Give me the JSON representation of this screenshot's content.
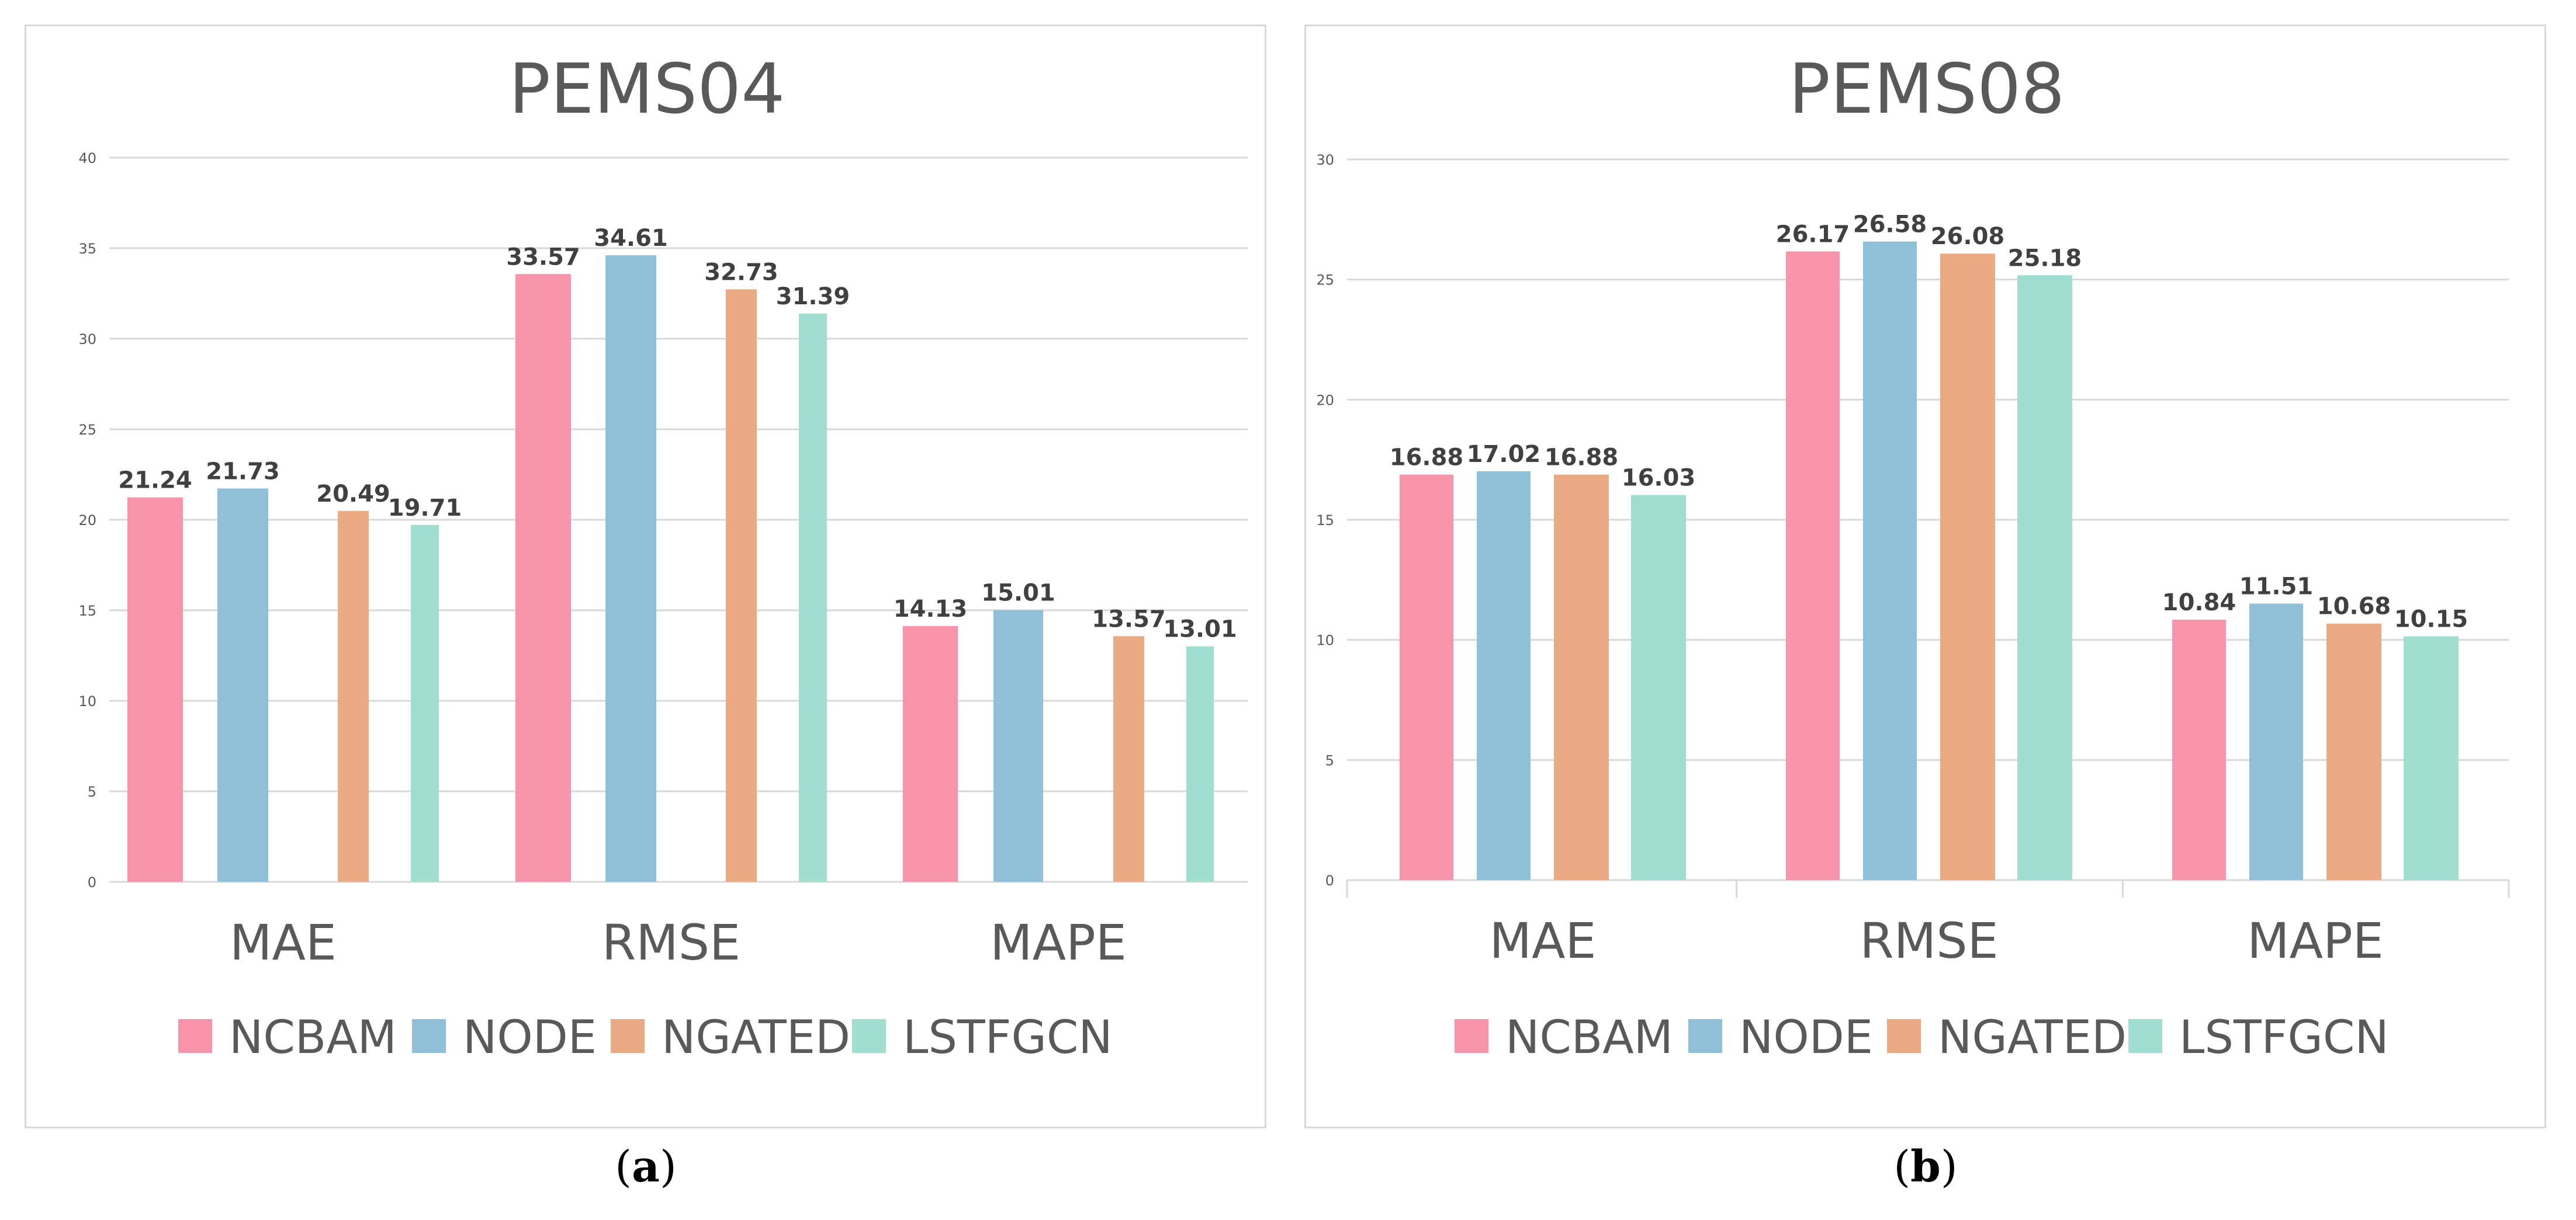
{
  "colors": {
    "NCBAM": "#f794aa",
    "NODE": "#8fc0d8",
    "NGATED": "#e9aa84",
    "LSTFGCN": "#a1ded0",
    "grid": "#d9d9d9",
    "text": "#595959"
  },
  "captions": {
    "a": "a",
    "b": "b"
  },
  "chart_data": [
    {
      "type": "bar",
      "title": "PEMS04",
      "categories": [
        "MAE",
        "RMSE",
        "MAPE"
      ],
      "ylim": [
        0,
        40
      ],
      "yticks": [
        0,
        5,
        10,
        15,
        20,
        25,
        30,
        35,
        40
      ],
      "ytick_labels": [
        "0",
        "5",
        "10",
        "15",
        "20",
        "25",
        "30",
        "35",
        "40"
      ],
      "grid": true,
      "legend_position": "bottom",
      "series": [
        {
          "name": "NCBAM",
          "values": [
            21.24,
            33.57,
            14.13
          ],
          "labels": [
            "21.24",
            "33.57",
            "14.13"
          ]
        },
        {
          "name": "NODE",
          "values": [
            21.73,
            34.61,
            15.01
          ],
          "labels": [
            "21.73",
            "34.61",
            "15.01"
          ]
        },
        {
          "name": "NGATED",
          "values": [
            20.49,
            32.73,
            13.57
          ],
          "labels": [
            "20.49",
            "32.73",
            "13.57"
          ]
        },
        {
          "name": "LSTFGCN",
          "values": [
            19.71,
            31.39,
            13.01
          ],
          "labels": [
            "19.71",
            "31.39",
            "13.01"
          ]
        }
      ]
    },
    {
      "type": "bar",
      "title": "PEMS08",
      "categories": [
        "MAE",
        "RMSE",
        "MAPE"
      ],
      "ylim": [
        0,
        30
      ],
      "yticks": [
        0,
        5,
        10,
        15,
        20,
        25,
        30
      ],
      "ytick_labels": [
        "0",
        "5",
        "10",
        "15",
        "20",
        "25",
        "30"
      ],
      "grid": true,
      "legend_position": "bottom",
      "series": [
        {
          "name": "NCBAM",
          "values": [
            16.88,
            26.17,
            10.84
          ],
          "labels": [
            "16.88",
            "26.17",
            "10.84"
          ]
        },
        {
          "name": "NODE",
          "values": [
            17.02,
            26.58,
            11.51
          ],
          "labels": [
            "17.02",
            "26.58",
            "11.51"
          ]
        },
        {
          "name": "NGATED",
          "values": [
            16.88,
            26.08,
            10.68
          ],
          "labels": [
            "16.88",
            "26.08",
            "10.68"
          ]
        },
        {
          "name": "LSTFGCN",
          "values": [
            16.03,
            25.18,
            10.15
          ],
          "labels": [
            "16.03",
            "25.18",
            "10.15"
          ]
        }
      ]
    }
  ]
}
